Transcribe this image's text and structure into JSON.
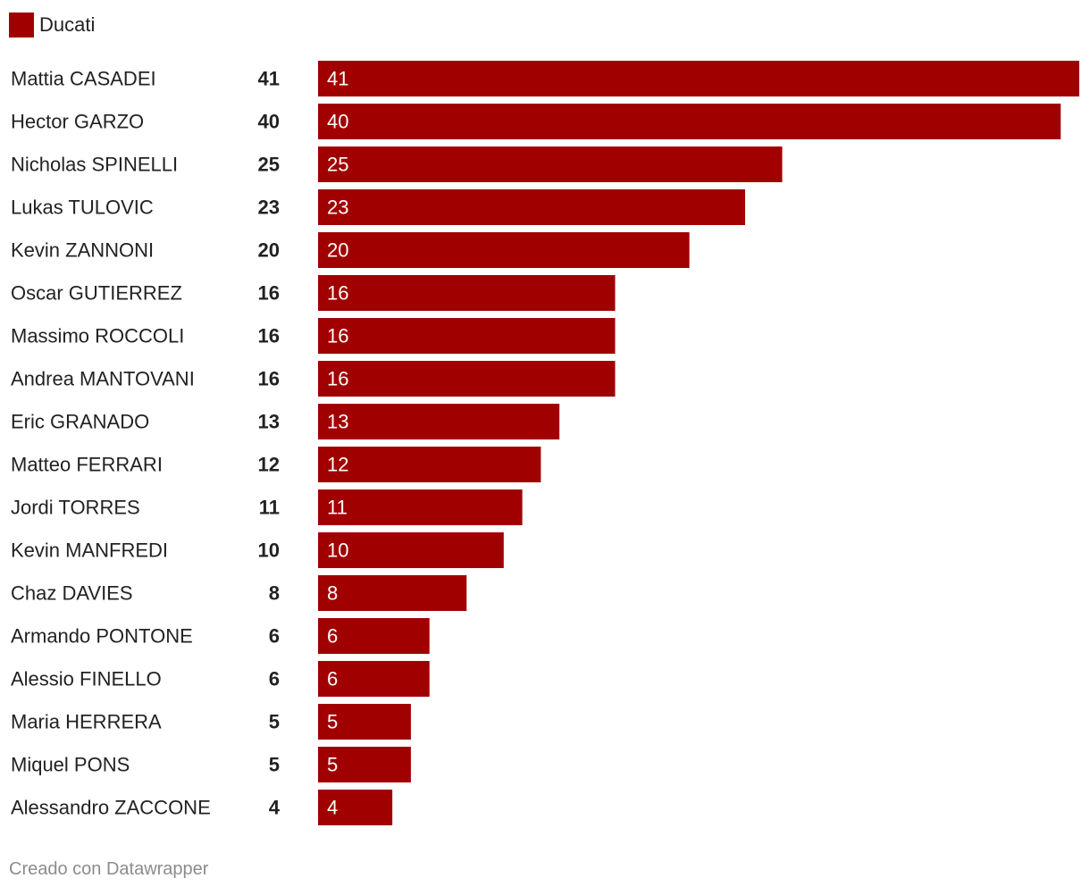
{
  "legend": {
    "label": "Ducati",
    "color": "#a10000"
  },
  "footer": {
    "credit": "Creado con Datawrapper"
  },
  "chart_data": {
    "type": "bar",
    "orientation": "horizontal",
    "categories": [
      "Mattia CASADEI",
      "Hector GARZO",
      "Nicholas SPINELLI",
      "Lukas TULOVIC",
      "Kevin ZANNONI",
      "Oscar GUTIERREZ",
      "Massimo ROCCOLI",
      "Andrea MANTOVANI",
      "Eric GRANADO",
      "Matteo FERRARI",
      "Jordi TORRES",
      "Kevin MANFREDI",
      "Chaz DAVIES",
      "Armando PONTONE",
      "Alessio FINELLO",
      "Maria HERRERA",
      "Miquel PONS",
      "Alessandro ZACCONE"
    ],
    "series": [
      {
        "name": "Ducati",
        "color": "#a10000",
        "values": [
          41,
          40,
          25,
          23,
          20,
          16,
          16,
          16,
          13,
          12,
          11,
          10,
          8,
          6,
          6,
          5,
          5,
          4
        ]
      }
    ],
    "xlim": [
      0,
      41
    ],
    "grid": false,
    "legend_position": "top-left"
  }
}
